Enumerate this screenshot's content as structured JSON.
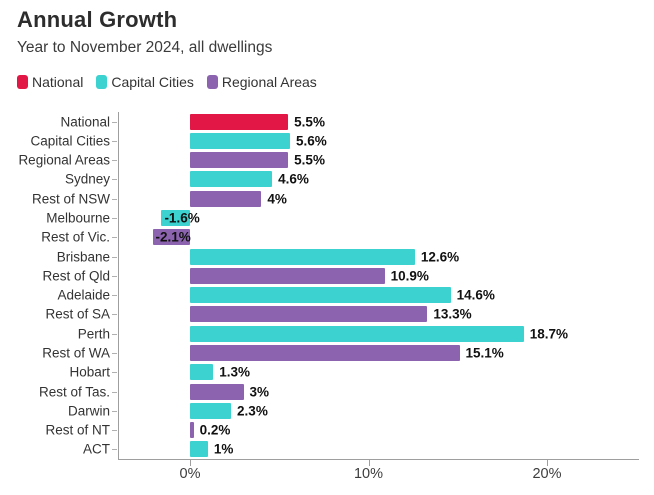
{
  "header": {
    "title": "Annual Growth",
    "subtitle": "Year to November 2024, all dwellings"
  },
  "legend": {
    "position": "top",
    "items": [
      {
        "key": "national",
        "label": "National",
        "color": "#e31745"
      },
      {
        "key": "capital-cities",
        "label": "Capital Cities",
        "color": "#3cd2d0"
      },
      {
        "key": "regional-areas",
        "label": "Regional Areas",
        "color": "#8b63af"
      }
    ]
  },
  "chart_data": {
    "type": "bar",
    "orientation": "horizontal",
    "title": "Annual Growth",
    "subtitle": "Year to November 2024, all dwellings",
    "unit": "%",
    "xlim": [
      -4,
      25.2
    ],
    "x_ticks": [
      {
        "value": 0,
        "label": "0%"
      },
      {
        "value": 10,
        "label": "10%"
      },
      {
        "value": 20,
        "label": "20%"
      }
    ],
    "grid": false,
    "legend_position": "top",
    "rows": [
      {
        "label": "National",
        "value": 5.5,
        "display": "5.5%",
        "group": "national"
      },
      {
        "label": "Capital Cities",
        "value": 5.6,
        "display": "5.6%",
        "group": "capital-cities"
      },
      {
        "label": "Regional Areas",
        "value": 5.5,
        "display": "5.5%",
        "group": "regional-areas"
      },
      {
        "label": "Sydney",
        "value": 4.6,
        "display": "4.6%",
        "group": "capital-cities"
      },
      {
        "label": "Rest of NSW",
        "value": 4,
        "display": "4%",
        "group": "regional-areas"
      },
      {
        "label": "Melbourne",
        "value": -1.6,
        "display": "-1.6%",
        "group": "capital-cities"
      },
      {
        "label": "Rest of Vic.",
        "value": -2.1,
        "display": "-2.1%",
        "group": "regional-areas"
      },
      {
        "label": "Brisbane",
        "value": 12.6,
        "display": "12.6%",
        "group": "capital-cities"
      },
      {
        "label": "Rest of Qld",
        "value": 10.9,
        "display": "10.9%",
        "group": "regional-areas"
      },
      {
        "label": "Adelaide",
        "value": 14.6,
        "display": "14.6%",
        "group": "capital-cities"
      },
      {
        "label": "Rest of SA",
        "value": 13.3,
        "display": "13.3%",
        "group": "regional-areas"
      },
      {
        "label": "Perth",
        "value": 18.7,
        "display": "18.7%",
        "group": "capital-cities"
      },
      {
        "label": "Rest of WA",
        "value": 15.1,
        "display": "15.1%",
        "group": "regional-areas"
      },
      {
        "label": "Hobart",
        "value": 1.3,
        "display": "1.3%",
        "group": "capital-cities"
      },
      {
        "label": "Rest of Tas.",
        "value": 3,
        "display": "3%",
        "group": "regional-areas"
      },
      {
        "label": "Darwin",
        "value": 2.3,
        "display": "2.3%",
        "group": "capital-cities"
      },
      {
        "label": "Rest of NT",
        "value": 0.2,
        "display": "0.2%",
        "group": "regional-areas"
      },
      {
        "label": "ACT",
        "value": 1,
        "display": "1%",
        "group": "capital-cities"
      }
    ]
  },
  "style": {
    "colors": {
      "national": "#e31745",
      "capital-cities": "#3cd2d0",
      "regional-areas": "#8b63af"
    },
    "axis_color": "#9e9e9e",
    "text_color": "#333333",
    "value_color": "#111111"
  }
}
